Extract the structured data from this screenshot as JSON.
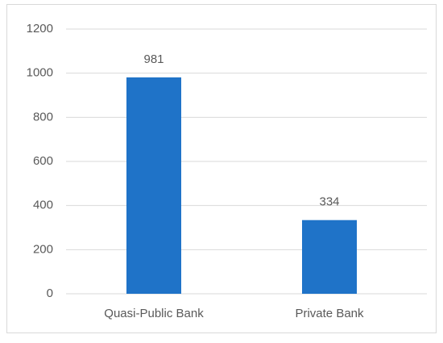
{
  "chart_data": {
    "type": "bar",
    "categories": [
      "Quasi-Public Bank",
      "Private Bank"
    ],
    "values": [
      981,
      334
    ],
    "color": "#1f73c8",
    "ylim": [
      0,
      1200
    ],
    "yticks": [
      0,
      200,
      400,
      600,
      800,
      1000,
      1200
    ],
    "grid": true,
    "data_labels": true
  }
}
